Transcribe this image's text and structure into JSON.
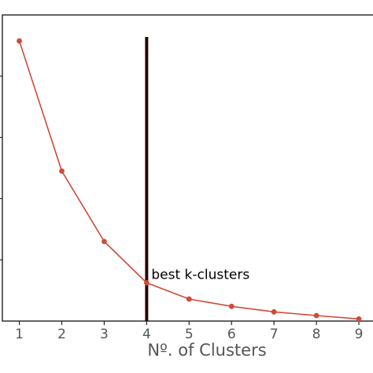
{
  "chart_data": {
    "type": "line",
    "xlabel": "Nº. of Clusters",
    "ylabel": "",
    "xlim": [
      0.6,
      9.5
    ],
    "ylim": [
      0,
      1.0
    ],
    "x": [
      1,
      2,
      3,
      4,
      5,
      6,
      7,
      8,
      9
    ],
    "series": [
      {
        "values": [
          0.915,
          0.49,
          0.26,
          0.125,
          0.072,
          0.048,
          0.03,
          0.018,
          0.007
        ]
      }
    ],
    "line_color": "#d04a3a",
    "marker_line": {
      "x": 4,
      "color": "#2a0505"
    },
    "annotation": {
      "text": "best k-clusters",
      "x": 4,
      "y": 0.125
    },
    "xticks": [
      "1",
      "2",
      "3",
      "4",
      "5",
      "6",
      "7",
      "8",
      "9"
    ],
    "grid": false
  }
}
